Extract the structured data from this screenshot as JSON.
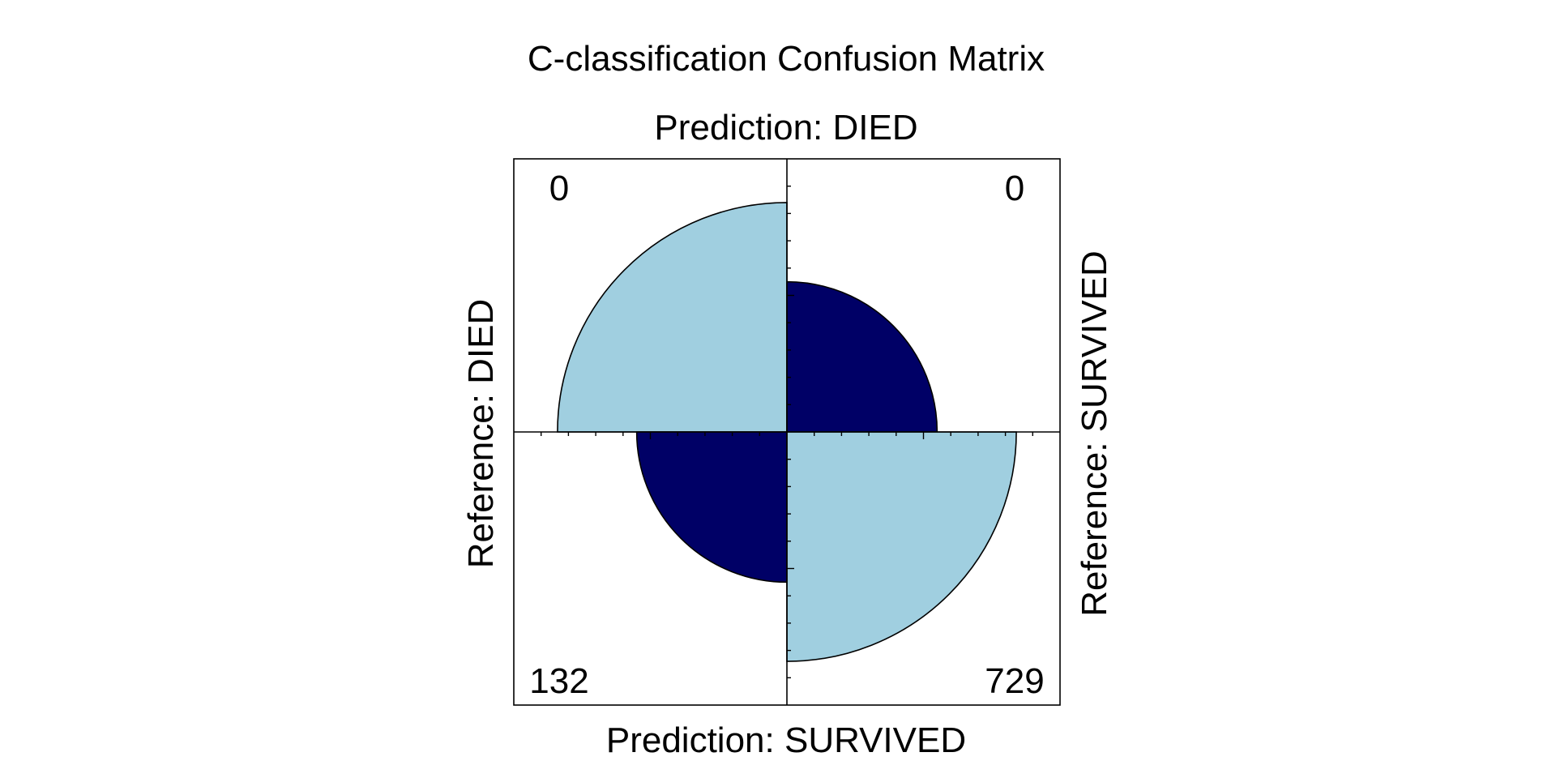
{
  "chart_data": {
    "type": "fourfold",
    "title": "C-classification Confusion Matrix",
    "top_label": "Prediction: DIED",
    "bottom_label": "Prediction: SURVIVED",
    "left_label": "Reference: DIED",
    "right_label": "Reference: SURVIVED",
    "cells": [
      {
        "quadrant": "top-left",
        "prediction": "DIED",
        "reference": "DIED",
        "count": "0",
        "value": 0,
        "shading": "light"
      },
      {
        "quadrant": "top-right",
        "prediction": "DIED",
        "reference": "SURVIVED",
        "count": "0",
        "value": 0,
        "shading": "dark"
      },
      {
        "quadrant": "bottom-left",
        "prediction": "SURVIVED",
        "reference": "DIED",
        "count": "132",
        "value": 132,
        "shading": "dark"
      },
      {
        "quadrant": "bottom-right",
        "prediction": "SURVIVED",
        "reference": "SURVIVED",
        "count": "729",
        "value": 729,
        "shading": "light"
      }
    ],
    "standardized_radius_fraction": {
      "top-left": 0.84,
      "top-right": 0.55,
      "bottom-left": 0.55,
      "bottom-right": 0.84
    },
    "colors": {
      "light": "#a0cfe0",
      "dark": "#000066",
      "outline": "#000000",
      "background": "#ffffff"
    }
  }
}
